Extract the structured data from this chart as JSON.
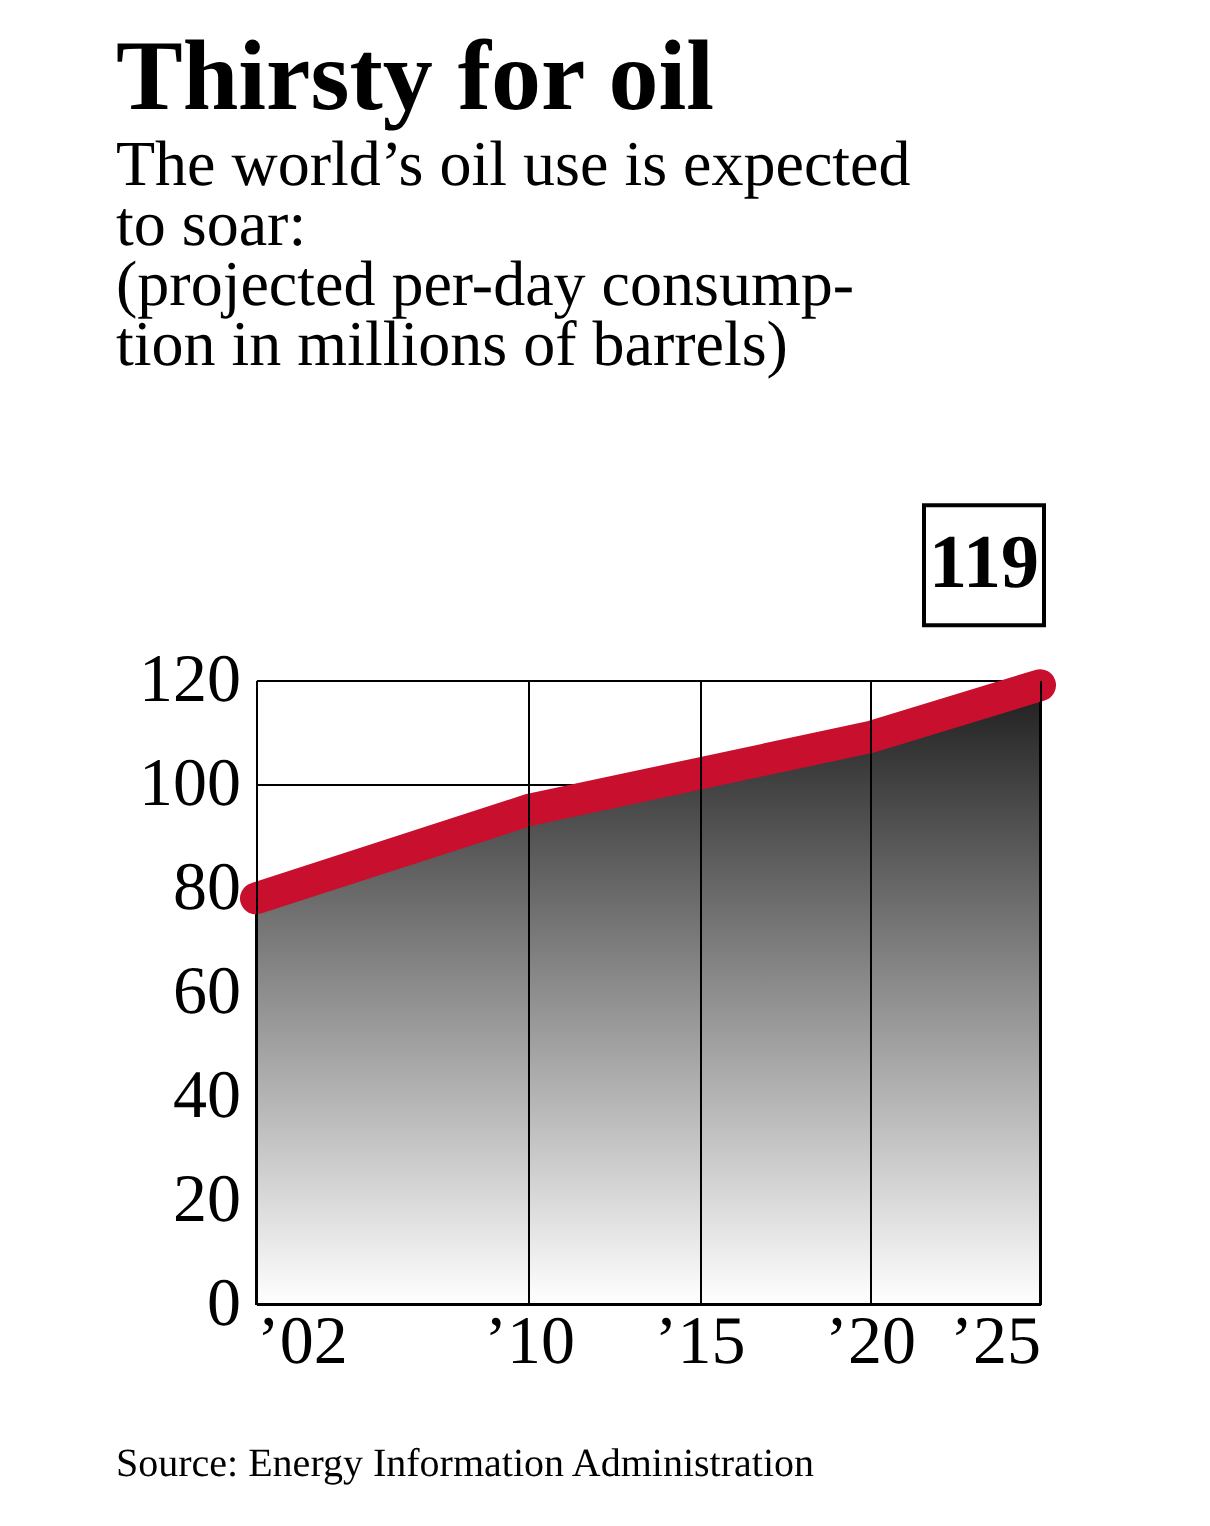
{
  "chart_data": {
    "type": "line",
    "title": "Thirsty for oil",
    "subtitle": "The world’s oil use is expected\nto soar:\n(projected per-day consump-\ntion in millions of barrels)",
    "x": [
      2002,
      2010,
      2015,
      2020,
      2025
    ],
    "series": [
      {
        "color": "#c8102e",
        "values": [
          78,
          95,
          102,
          109,
          119
        ]
      }
    ],
    "xlim": [
      2002,
      2025
    ],
    "xticks": [
      {
        "value": 2002,
        "label": "’02"
      },
      {
        "value": 2010,
        "label": "’10"
      },
      {
        "value": 2015,
        "label": "’15"
      },
      {
        "value": 2020,
        "label": "’20"
      },
      {
        "value": 2025,
        "label": "’25"
      }
    ],
    "ylim": [
      0,
      120
    ],
    "yticks": [
      0,
      20,
      40,
      60,
      80,
      100,
      120
    ],
    "grid": true,
    "annotations": [
      {
        "text": "119",
        "x": 2025,
        "y": 119
      },
      "Source: Energy Information Administration"
    ]
  }
}
